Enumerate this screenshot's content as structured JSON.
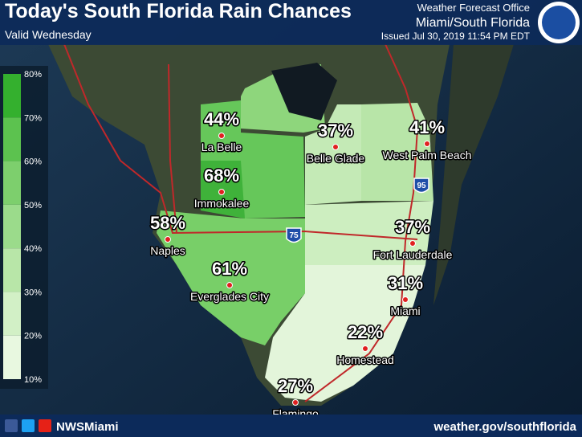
{
  "header": {
    "title": "Today's South Florida Rain Chances",
    "subtitle": "Valid Wednesday",
    "office": "Weather Forecast Office",
    "office_name": "Miami/South Florida",
    "issued": "Issued Jul 30, 2019 11:54 PM EDT"
  },
  "legend": {
    "labels": [
      "80%",
      "70%",
      "60%",
      "50%",
      "40%",
      "30%",
      "20%",
      "10%"
    ]
  },
  "cities": [
    {
      "name": "La Belle",
      "chance": "44%"
    },
    {
      "name": "Belle Glade",
      "chance": "37%"
    },
    {
      "name": "West Palm Beach",
      "chance": "41%"
    },
    {
      "name": "Immokalee",
      "chance": "68%"
    },
    {
      "name": "Naples",
      "chance": "58%"
    },
    {
      "name": "Fort Lauderdale",
      "chance": "37%"
    },
    {
      "name": "Everglades City",
      "chance": "61%"
    },
    {
      "name": "Miami",
      "chance": "31%"
    },
    {
      "name": "Homestead",
      "chance": "22%"
    },
    {
      "name": "Flamingo",
      "chance": "27%"
    }
  ],
  "highways": [
    "75",
    "95"
  ],
  "footer": {
    "handle": "NWSMiami",
    "url": "weather.gov/southflorida"
  }
}
